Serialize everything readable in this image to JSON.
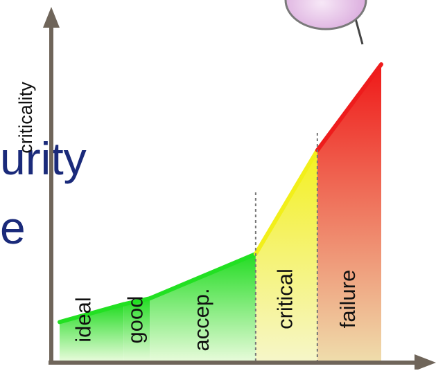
{
  "background_text": {
    "line1": "urity",
    "line2": "e",
    "color": "#1a2a7a"
  },
  "chart_data": {
    "type": "area",
    "ylabel": "criticality",
    "xlabel": "",
    "regions": [
      {
        "label": "ideal",
        "from": 0,
        "to": 1.45,
        "start_value": 0.13,
        "end_value": 0.19,
        "top_color": "#22e022",
        "fill_color": "#c8f7b8"
      },
      {
        "label": "good",
        "from": 1.45,
        "to": 2.05,
        "start_value": 0.19,
        "end_value": 0.21,
        "top_color": "#22e022",
        "fill_color": "#d4f7c4"
      },
      {
        "label": "accep.",
        "from": 2.05,
        "to": 4.45,
        "start_value": 0.21,
        "end_value": 0.36,
        "top_color": "#22e022",
        "fill_color": "#dcf8cc"
      },
      {
        "label": "critical",
        "from": 4.45,
        "to": 5.85,
        "start_value": 0.36,
        "end_value": 0.71,
        "top_color": "#f2ef1a",
        "fill_color": "#f7f28a"
      },
      {
        "label": "failure",
        "from": 5.85,
        "to": 7.3,
        "start_value": 0.71,
        "end_value": 1.0,
        "top_color": "#ee1c1c",
        "fill_color": "#f3b090"
      }
    ],
    "boundaries": [
      4.45,
      5.85
    ],
    "xlim": [
      0,
      7.3
    ],
    "ylim": [
      0,
      1
    ],
    "grid": false,
    "legend": "none"
  },
  "decor": {
    "bubble_color": "#ecc8ee",
    "axis_color": "#6f655a"
  }
}
